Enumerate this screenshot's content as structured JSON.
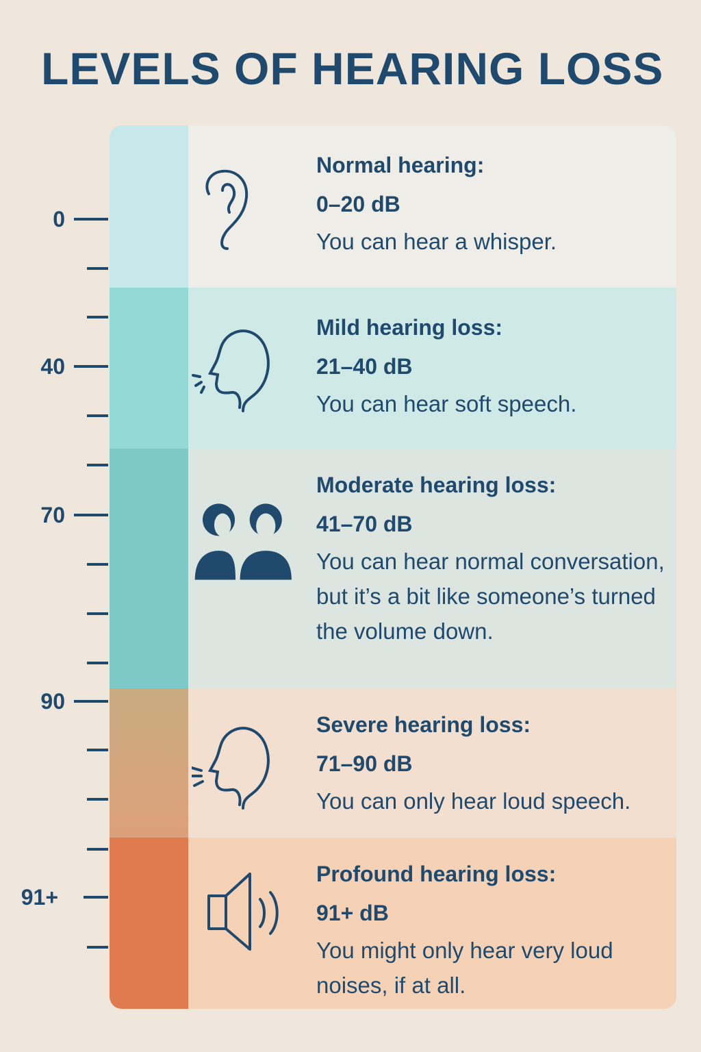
{
  "title": "LEVELS OF HEARING LOSS",
  "scale_labels": [
    "0",
    "40",
    "70",
    "90",
    "91+"
  ],
  "levels": [
    {
      "heading": "Normal hearing:",
      "range": "0–20 dB",
      "description": "You can hear a whisper."
    },
    {
      "heading": "Mild hearing loss:",
      "range": "21–40 dB",
      "description": "You can hear soft speech."
    },
    {
      "heading": "Moderate hearing loss:",
      "range": "41–70 dB",
      "description": "You can hear normal conversation, but it’s a bit like someone’s turned the volume down."
    },
    {
      "heading": "Severe hearing loss:",
      "range": "71–90 dB",
      "description": "You can only hear loud speech."
    },
    {
      "heading": "Profound hearing loss:",
      "range": "91+ dB",
      "description": "You might only hear very loud noises, if at all."
    }
  ]
}
